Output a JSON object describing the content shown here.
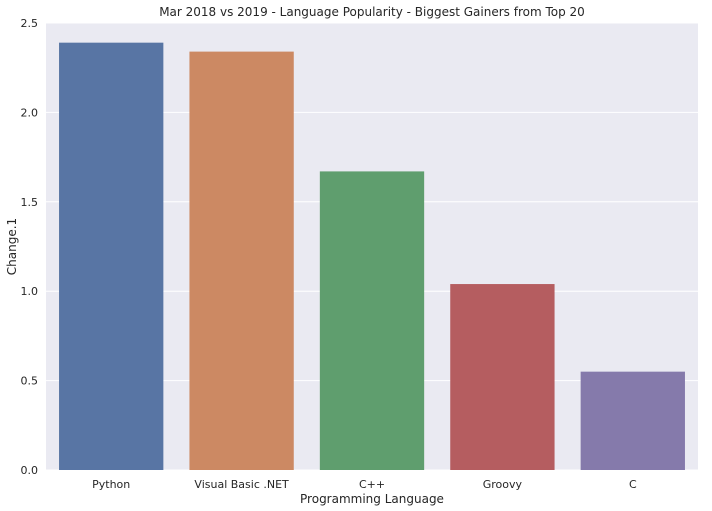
{
  "chart_data": {
    "type": "bar",
    "title": "Mar 2018 vs 2019 - Language Popularity - Biggest Gainers from Top 20",
    "xlabel": "Programming Language",
    "ylabel": "Change.1",
    "categories": [
      "Python",
      "Visual Basic .NET",
      "C++",
      "Groovy",
      "C"
    ],
    "values": [
      2.39,
      2.34,
      1.67,
      1.04,
      0.55
    ],
    "colors": [
      "#5875a4",
      "#cc8963",
      "#5f9e6e",
      "#b55d60",
      "#857aab"
    ],
    "ylim": [
      0,
      2.5
    ],
    "yticks": [
      0.0,
      0.5,
      1.0,
      1.5,
      2.0,
      2.5
    ],
    "ytick_labels": [
      "0.0",
      "0.5",
      "1.0",
      "1.5",
      "2.0",
      "2.5"
    ],
    "grid": true,
    "background": "#eaeaf2",
    "grid_color": "#ffffff"
  }
}
